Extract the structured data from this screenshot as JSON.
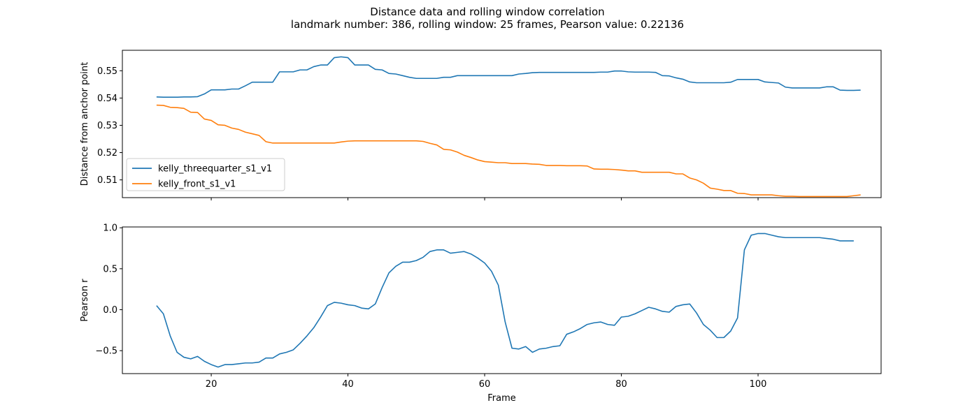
{
  "figure": {
    "title_line1": "Distance data and rolling window correlation",
    "title_line2": "landmark number: 386, rolling window: 25 frames, Pearson value: 0.22136"
  },
  "chart_data": [
    {
      "type": "line",
      "ylabel": "Distance from anchor point",
      "xlabel": "",
      "xlim": [
        7,
        118
      ],
      "ylim": [
        0.5035,
        0.5575
      ],
      "xticks": [
        20,
        40,
        60,
        80,
        100
      ],
      "yticks": [
        0.51,
        0.52,
        0.53,
        0.54,
        0.55
      ],
      "ytick_labels": [
        "0.51",
        "0.52",
        "0.53",
        "0.54",
        "0.55"
      ],
      "grid": false,
      "legend_position": "lower-left",
      "colors": [
        "#1f77b4",
        "#ff7f0e"
      ],
      "x_start": 12,
      "series": [
        {
          "name": "kelly_threequarter_s1_v1",
          "values": [
            0.5404,
            0.5403,
            0.5403,
            0.5403,
            0.5404,
            0.5404,
            0.5405,
            0.5415,
            0.543,
            0.543,
            0.543,
            0.5433,
            0.5433,
            0.5445,
            0.5458,
            0.5458,
            0.5458,
            0.5458,
            0.5496,
            0.5496,
            0.5496,
            0.5503,
            0.5503,
            0.5515,
            0.5521,
            0.5521,
            0.5548,
            0.5551,
            0.5548,
            0.5521,
            0.5521,
            0.5521,
            0.5505,
            0.5503,
            0.549,
            0.5488,
            0.5482,
            0.5476,
            0.5472,
            0.5472,
            0.5472,
            0.5472,
            0.5476,
            0.5476,
            0.5482,
            0.5482,
            0.5482,
            0.5482,
            0.5482,
            0.5482,
            0.5482,
            0.5482,
            0.5482,
            0.5488,
            0.549,
            0.5493,
            0.5494,
            0.5494,
            0.5494,
            0.5494,
            0.5494,
            0.5494,
            0.5494,
            0.5494,
            0.5494,
            0.5495,
            0.5495,
            0.5499,
            0.5499,
            0.5496,
            0.5495,
            0.5495,
            0.5495,
            0.5494,
            0.5482,
            0.5481,
            0.5474,
            0.5469,
            0.5459,
            0.5456,
            0.5456,
            0.5456,
            0.5456,
            0.5456,
            0.5458,
            0.5468,
            0.5468,
            0.5468,
            0.5468,
            0.5459,
            0.5457,
            0.5455,
            0.544,
            0.5437,
            0.5437,
            0.5437,
            0.5437,
            0.5437,
            0.5441,
            0.5441,
            0.5429,
            0.5428,
            0.5428,
            0.5429
          ]
        },
        {
          "name": "kelly_front_s1_v1",
          "values": [
            0.5374,
            0.5373,
            0.5366,
            0.5365,
            0.5362,
            0.5348,
            0.5347,
            0.5323,
            0.5318,
            0.5302,
            0.53,
            0.529,
            0.5285,
            0.5275,
            0.5269,
            0.5263,
            0.524,
            0.5235,
            0.5235,
            0.5235,
            0.5235,
            0.5235,
            0.5235,
            0.5235,
            0.5235,
            0.5235,
            0.5235,
            0.5239,
            0.5242,
            0.5243,
            0.5243,
            0.5243,
            0.5243,
            0.5243,
            0.5243,
            0.5243,
            0.5243,
            0.5243,
            0.5243,
            0.5241,
            0.5234,
            0.5228,
            0.5212,
            0.521,
            0.5202,
            0.519,
            0.5182,
            0.5173,
            0.5167,
            0.5165,
            0.5163,
            0.5163,
            0.516,
            0.516,
            0.516,
            0.5158,
            0.5157,
            0.5153,
            0.5153,
            0.5153,
            0.5152,
            0.5152,
            0.5152,
            0.5151,
            0.514,
            0.5139,
            0.5139,
            0.5138,
            0.5136,
            0.5133,
            0.5133,
            0.5128,
            0.5128,
            0.5128,
            0.5128,
            0.5128,
            0.5122,
            0.5122,
            0.5107,
            0.51,
            0.5088,
            0.507,
            0.5066,
            0.5061,
            0.5061,
            0.5051,
            0.505,
            0.5045,
            0.5045,
            0.5045,
            0.5045,
            0.5042,
            0.504,
            0.504,
            0.5039,
            0.5039,
            0.5039,
            0.5039,
            0.5039,
            0.5039,
            0.5039,
            0.5039,
            0.5042,
            0.5045
          ]
        }
      ]
    },
    {
      "type": "line",
      "ylabel": "Pearson r",
      "xlabel": "Frame",
      "xlim": [
        7,
        118
      ],
      "ylim": [
        -0.78,
        1.01
      ],
      "xticks": [
        20,
        40,
        60,
        80,
        100
      ],
      "yticks": [
        -0.5,
        0.0,
        0.5,
        1.0
      ],
      "ytick_labels": [
        "−0.5",
        "0.0",
        "0.5",
        "1.0"
      ],
      "grid": false,
      "colors": [
        "#1f77b4"
      ],
      "x_start": 12,
      "series": [
        {
          "values": [
            0.05,
            -0.05,
            -0.32,
            -0.52,
            -0.58,
            -0.6,
            -0.57,
            -0.63,
            -0.67,
            -0.7,
            -0.67,
            -0.67,
            -0.66,
            -0.65,
            -0.65,
            -0.64,
            -0.59,
            -0.59,
            -0.54,
            -0.52,
            -0.49,
            -0.41,
            -0.32,
            -0.22,
            -0.09,
            0.05,
            0.09,
            0.08,
            0.06,
            0.05,
            0.02,
            0.01,
            0.07,
            0.27,
            0.45,
            0.53,
            0.58,
            0.58,
            0.6,
            0.64,
            0.71,
            0.73,
            0.73,
            0.69,
            0.7,
            0.71,
            0.68,
            0.63,
            0.57,
            0.47,
            0.3,
            -0.15,
            -0.47,
            -0.48,
            -0.45,
            -0.52,
            -0.48,
            -0.47,
            -0.45,
            -0.44,
            -0.3,
            -0.27,
            -0.23,
            -0.18,
            -0.16,
            -0.15,
            -0.18,
            -0.19,
            -0.09,
            -0.08,
            -0.05,
            -0.01,
            0.03,
            0.01,
            -0.02,
            -0.03,
            0.04,
            0.06,
            0.07,
            -0.04,
            -0.18,
            -0.25,
            -0.34,
            -0.34,
            -0.26,
            -0.1,
            0.73,
            0.91,
            0.93,
            0.93,
            0.91,
            0.89,
            0.88,
            0.88,
            0.88,
            0.88,
            0.88,
            0.88,
            0.87,
            0.86,
            0.84,
            0.84,
            0.84
          ]
        }
      ]
    }
  ]
}
